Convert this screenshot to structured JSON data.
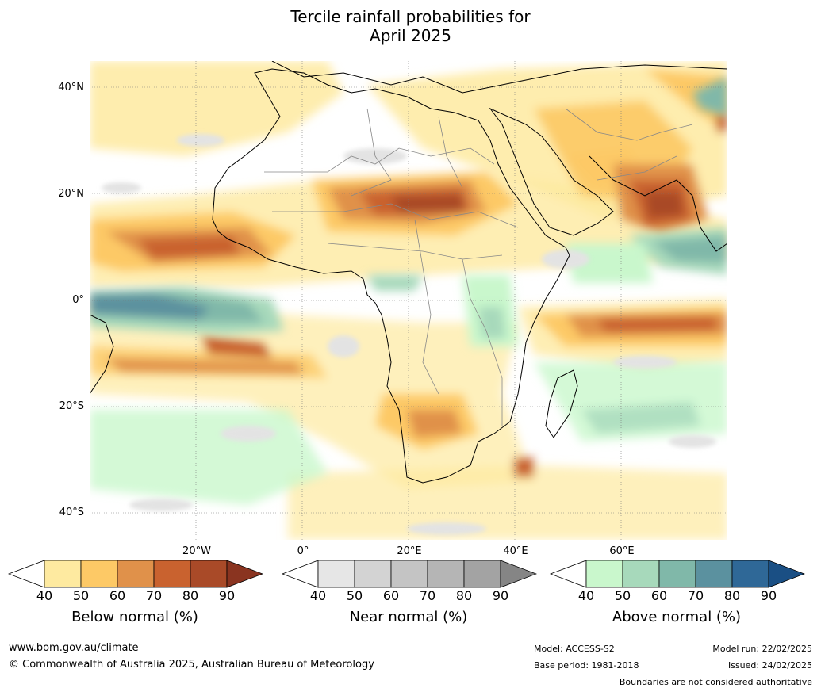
{
  "title_line1": "Tercile rainfall probabilities for",
  "title_line2": "April 2025",
  "map": {
    "lat_labels": [
      "40°N",
      "20°N",
      "0°",
      "20°S",
      "40°S"
    ],
    "lon_labels": [
      "20°W",
      "0°",
      "20°E",
      "40°E",
      "60°E"
    ]
  },
  "legends": [
    {
      "title": "Below normal (%)",
      "ticks": [
        "40",
        "50",
        "60",
        "70",
        "80",
        "90"
      ],
      "colors": [
        "#ffffff",
        "#feeaa0",
        "#fdc966",
        "#e0914a",
        "#c9622f",
        "#a94a28",
        "#8a3420"
      ]
    },
    {
      "title": "Near normal (%)",
      "ticks": [
        "40",
        "50",
        "60",
        "70",
        "80",
        "90"
      ],
      "colors": [
        "#ffffff",
        "#e6e6e6",
        "#d3d3d3",
        "#c4c4c4",
        "#b5b5b5",
        "#a3a3a3",
        "#858585"
      ]
    },
    {
      "title": "Above normal (%)",
      "ticks": [
        "40",
        "50",
        "60",
        "70",
        "80",
        "90"
      ],
      "colors": [
        "#ffffff",
        "#c9f7cc",
        "#a7d9bb",
        "#80b8a9",
        "#5b919f",
        "#2f6897",
        "#1a4f84"
      ]
    }
  ],
  "footer": {
    "url": "www.bom.gov.au/climate",
    "copyright": "© Commonwealth of Australia 2025, Australian Bureau of Meteorology",
    "model": "Model: ACCESS-S2",
    "base_period": "Base period: 1981-2018",
    "model_run": "Model run: 22/02/2025",
    "issued": "Issued: 24/02/2025",
    "disclaimer": "Boundaries are not considered authoritative"
  }
}
